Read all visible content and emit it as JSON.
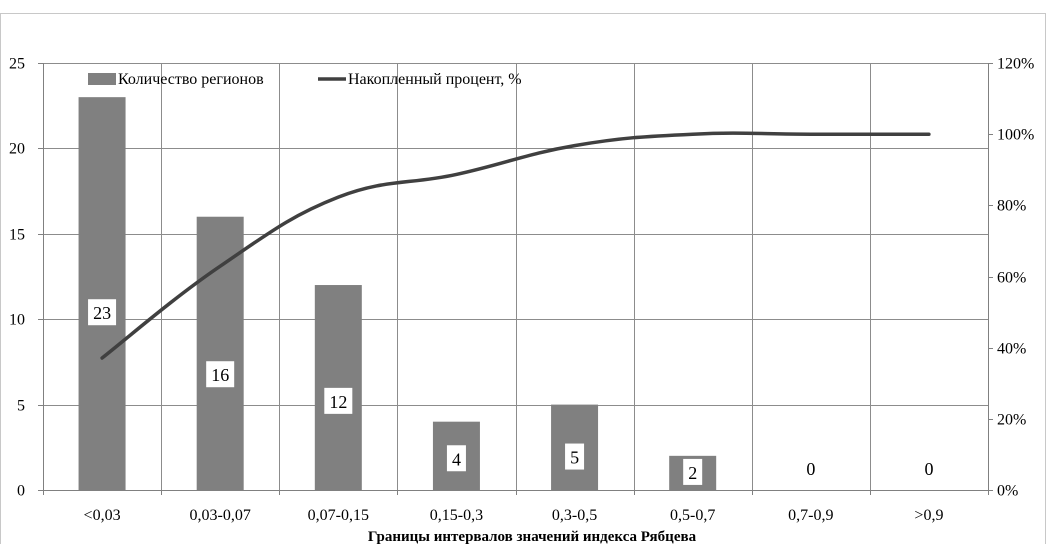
{
  "chart_data": {
    "type": "bar",
    "categories": [
      "<0,03",
      "0,03-0,07",
      "0,07-0,15",
      "0,15-0,3",
      "0,3-0,5",
      "0,5-0,7",
      "0,7-0,9",
      ">0,9"
    ],
    "series": [
      {
        "name": "Количество регионов",
        "type": "bar",
        "axis": "left",
        "values": [
          23,
          16,
          12,
          4,
          5,
          2,
          0,
          0
        ],
        "data_labels": [
          "23",
          "16",
          "12",
          "4",
          "5",
          "2",
          "0",
          "0"
        ],
        "color": "#808080"
      },
      {
        "name": "Накопленный процент, %",
        "type": "line",
        "axis": "right",
        "values": [
          37.1,
          62.9,
          82.3,
          88.7,
          96.8,
          100,
          100,
          100
        ],
        "color": "#404040"
      }
    ],
    "title": "",
    "xlabel": "Границы интервалов значений индекса Рябцева",
    "ylabel": "",
    "y2label": "",
    "ylim": [
      0,
      25
    ],
    "y2lim": [
      0,
      120
    ],
    "yticks": [
      "0",
      "5",
      "10",
      "15",
      "20",
      "25"
    ],
    "y2ticks": [
      "0%",
      "20%",
      "40%",
      "60%",
      "80%",
      "100%",
      "120%"
    ],
    "grid": true,
    "legend": "top-left"
  }
}
